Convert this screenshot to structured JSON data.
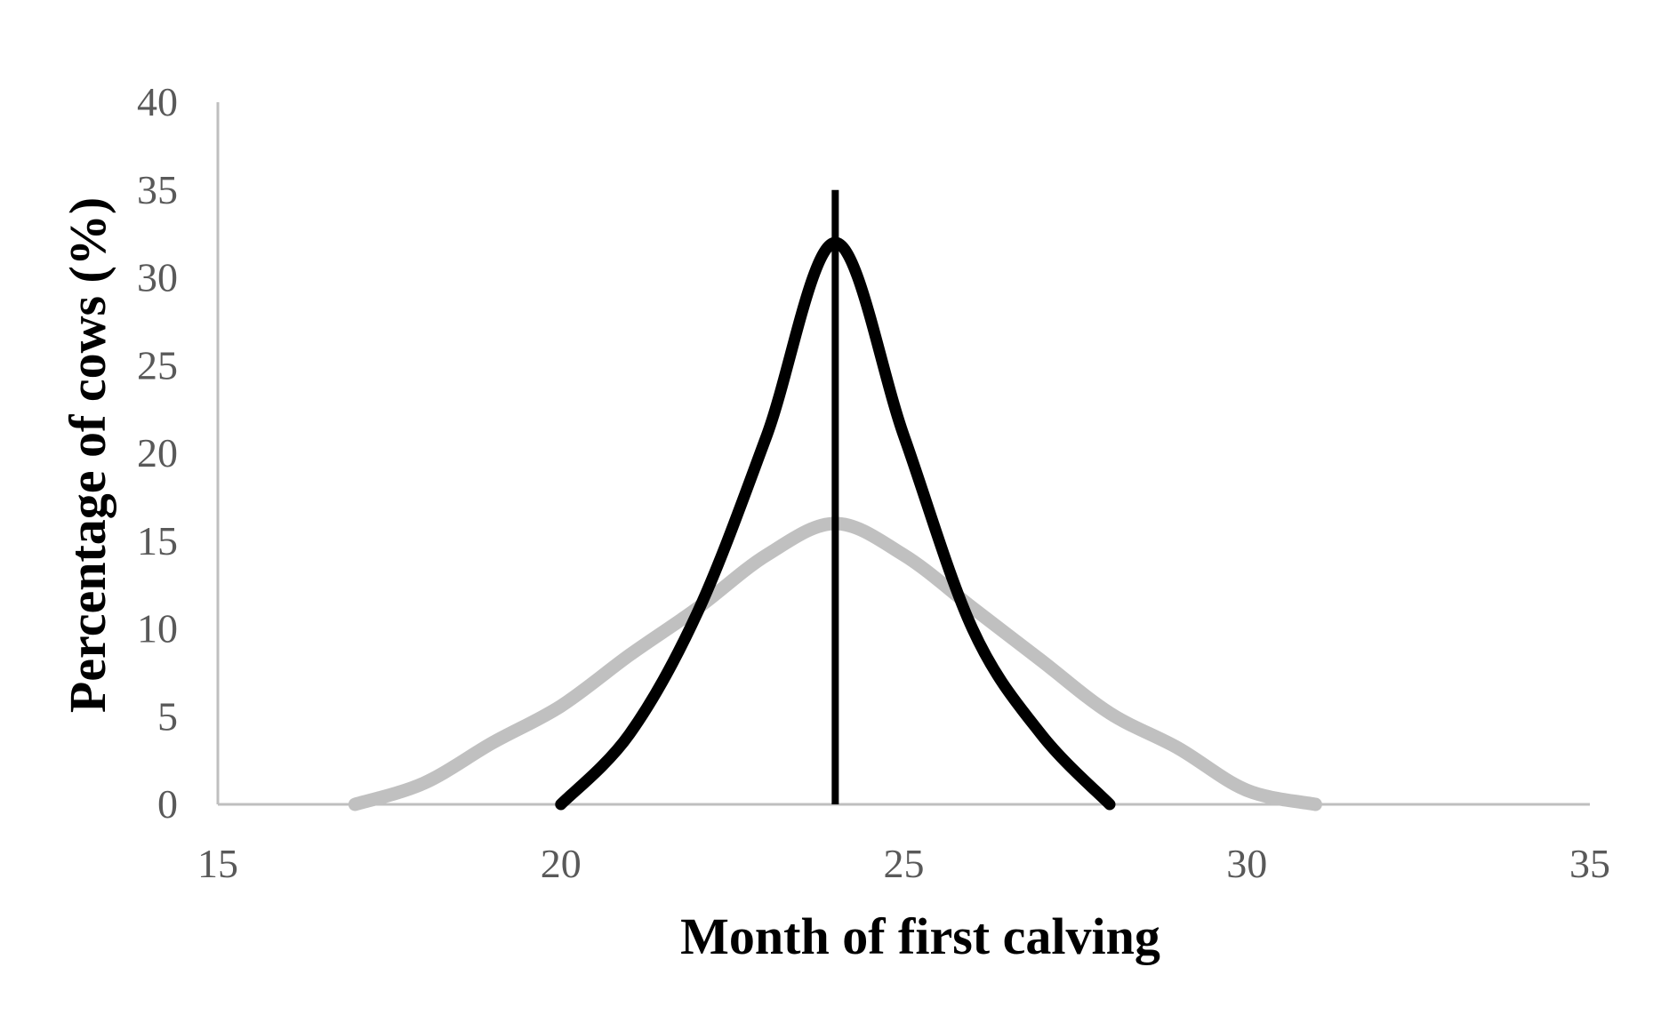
{
  "chart_data": {
    "type": "line",
    "title": "",
    "xlabel": "Month of first calving",
    "ylabel": "Percentage of cows (%)",
    "xlim": [
      15,
      35
    ],
    "ylim": [
      0,
      40
    ],
    "x_ticks": [
      "15",
      "20",
      "25",
      "30",
      "35"
    ],
    "y_ticks": [
      "0",
      "5",
      "10",
      "15",
      "20",
      "25",
      "30",
      "35",
      "40"
    ],
    "grid": false,
    "legend": "none",
    "axis_color": "#bfbfbf",
    "series": [
      {
        "color": "#c0c0c0",
        "points": [
          [
            17.0,
            0.0
          ],
          [
            18.0,
            1.2
          ],
          [
            19.0,
            3.5
          ],
          [
            20.0,
            5.6
          ],
          [
            21.0,
            8.5
          ],
          [
            22.0,
            11.2
          ],
          [
            23.0,
            14.2
          ],
          [
            24.0,
            16.0
          ],
          [
            25.0,
            14.2
          ],
          [
            26.0,
            11.2
          ],
          [
            27.0,
            8.2
          ],
          [
            28.0,
            5.2
          ],
          [
            29.0,
            3.2
          ],
          [
            30.0,
            0.8
          ],
          [
            31.0,
            0.0
          ]
        ]
      },
      {
        "color": "#000000",
        "points": [
          [
            20.0,
            0.0
          ],
          [
            21.0,
            4.0
          ],
          [
            22.0,
            11.0
          ],
          [
            23.0,
            21.0
          ],
          [
            24.0,
            32.0
          ],
          [
            25.0,
            21.0
          ],
          [
            26.0,
            10.0
          ],
          [
            27.0,
            4.0
          ],
          [
            28.0,
            0.0
          ]
        ]
      }
    ],
    "reference_line": {
      "x": 24,
      "y_range": [
        0,
        35
      ],
      "color": "#000000"
    }
  }
}
